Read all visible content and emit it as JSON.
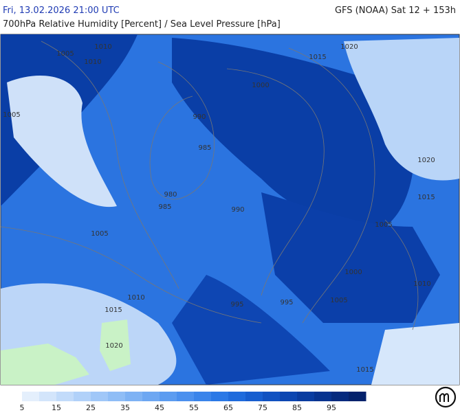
{
  "header": {
    "datetime": "Fri, 13.02.2026 21:00 UTC",
    "model": "GFS (NOAA) Sat 12 + 153h",
    "title": "700hPa Relative Humidity [Percent] / Sea Level Pressure [hPa]"
  },
  "isobar_labels": [
    1005,
    1010,
    1010,
    1020,
    1015,
    1000,
    990,
    985,
    980,
    985,
    990,
    1005,
    1020,
    1015,
    1005,
    1005,
    1000,
    1010,
    1010,
    1015,
    995,
    995,
    1005,
    1020,
    1015
  ],
  "colorbar": {
    "ticks": [
      5,
      15,
      25,
      35,
      45,
      55,
      65,
      75,
      85,
      95
    ],
    "colors": [
      "#e4effc",
      "#d3e5fb",
      "#c2dbfa",
      "#b1d1f9",
      "#a0c7f8",
      "#8fbdf6",
      "#7eb2f4",
      "#6da7f2",
      "#5c9cf0",
      "#4b90ee",
      "#3a84ea",
      "#2a78e6",
      "#1f6bdc",
      "#175ecf",
      "#1152c1",
      "#0c46b1",
      "#093ca0",
      "#07338f",
      "#052a7e",
      "#04226c"
    ]
  }
}
